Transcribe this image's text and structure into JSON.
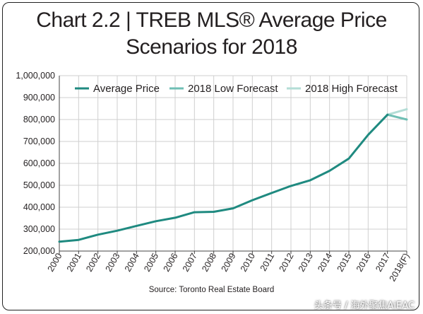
{
  "chart_data": {
    "type": "line",
    "title_line1": "Chart 2.2 | TREB MLS® Average Price",
    "title_line2": "Scenarios for 2018",
    "source": "Source: Toronto Real Estate Board",
    "ylim": [
      200000,
      1000000
    ],
    "yticks": [
      "200,000",
      "300,000",
      "400,000",
      "500,000",
      "600,000",
      "700,000",
      "800,000",
      "900,000",
      "1,000,000"
    ],
    "yticks_values": [
      200000,
      300000,
      400000,
      500000,
      600000,
      700000,
      800000,
      900000,
      1000000
    ],
    "categories": [
      "2000",
      "2001",
      "2002",
      "2003",
      "2004",
      "2005",
      "2006",
      "2007",
      "2008",
      "2009",
      "2010",
      "2011",
      "2012",
      "2013",
      "2014",
      "2015",
      "2016",
      "2017",
      "2018(F)"
    ],
    "grid": true,
    "legend_position": "top",
    "series": [
      {
        "name": "Average Price",
        "color": "#1f8a80",
        "x": [
          "2000",
          "2001",
          "2002",
          "2003",
          "2004",
          "2005",
          "2006",
          "2007",
          "2008",
          "2009",
          "2010",
          "2011",
          "2012",
          "2013",
          "2014",
          "2015",
          "2016",
          "2017"
        ],
        "values": [
          243000,
          251000,
          275000,
          293000,
          315000,
          336000,
          352000,
          377000,
          379000,
          395000,
          432000,
          465000,
          497000,
          523000,
          566000,
          622000,
          730000,
          822000
        ]
      },
      {
        "name": "2018 Low Forecast",
        "color": "#6fbfb4",
        "x": [
          "2017",
          "2018(F)"
        ],
        "values": [
          822000,
          800000
        ]
      },
      {
        "name": "2018 High Forecast",
        "color": "#b3ddd6",
        "x": [
          "2017",
          "2018(F)"
        ],
        "values": [
          822000,
          847000
        ]
      }
    ]
  },
  "watermark": "头条号 / 海外聚焦AiEAC"
}
